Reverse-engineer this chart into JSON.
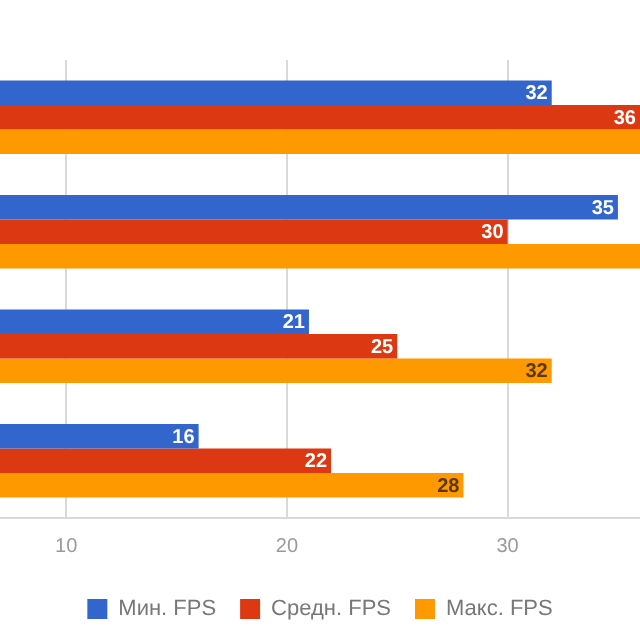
{
  "chart_data": {
    "type": "bar",
    "orientation": "horizontal",
    "categories": [
      null,
      null,
      null,
      null
    ],
    "series": [
      {
        "name": "Мин. FPS",
        "color": "#3366cc",
        "values": [
          32,
          35,
          21,
          16
        ],
        "value_labels": [
          "32",
          "35",
          "21",
          "16"
        ]
      },
      {
        "name": "Средн. FPS",
        "color": "#dc3912",
        "values": [
          36,
          30,
          25,
          22
        ],
        "value_labels": [
          "36",
          "30",
          "25",
          "22"
        ]
      },
      {
        "name": "Макс. FPS",
        "color": "#ff9900",
        "values": [
          36,
          36,
          32,
          28
        ],
        "value_labels": [
          null,
          null,
          "32",
          "28"
        ]
      }
    ],
    "xlim": [
      7,
      36
    ],
    "xticks": [
      10,
      20,
      30
    ],
    "grid": "x",
    "legend": "bottom"
  }
}
